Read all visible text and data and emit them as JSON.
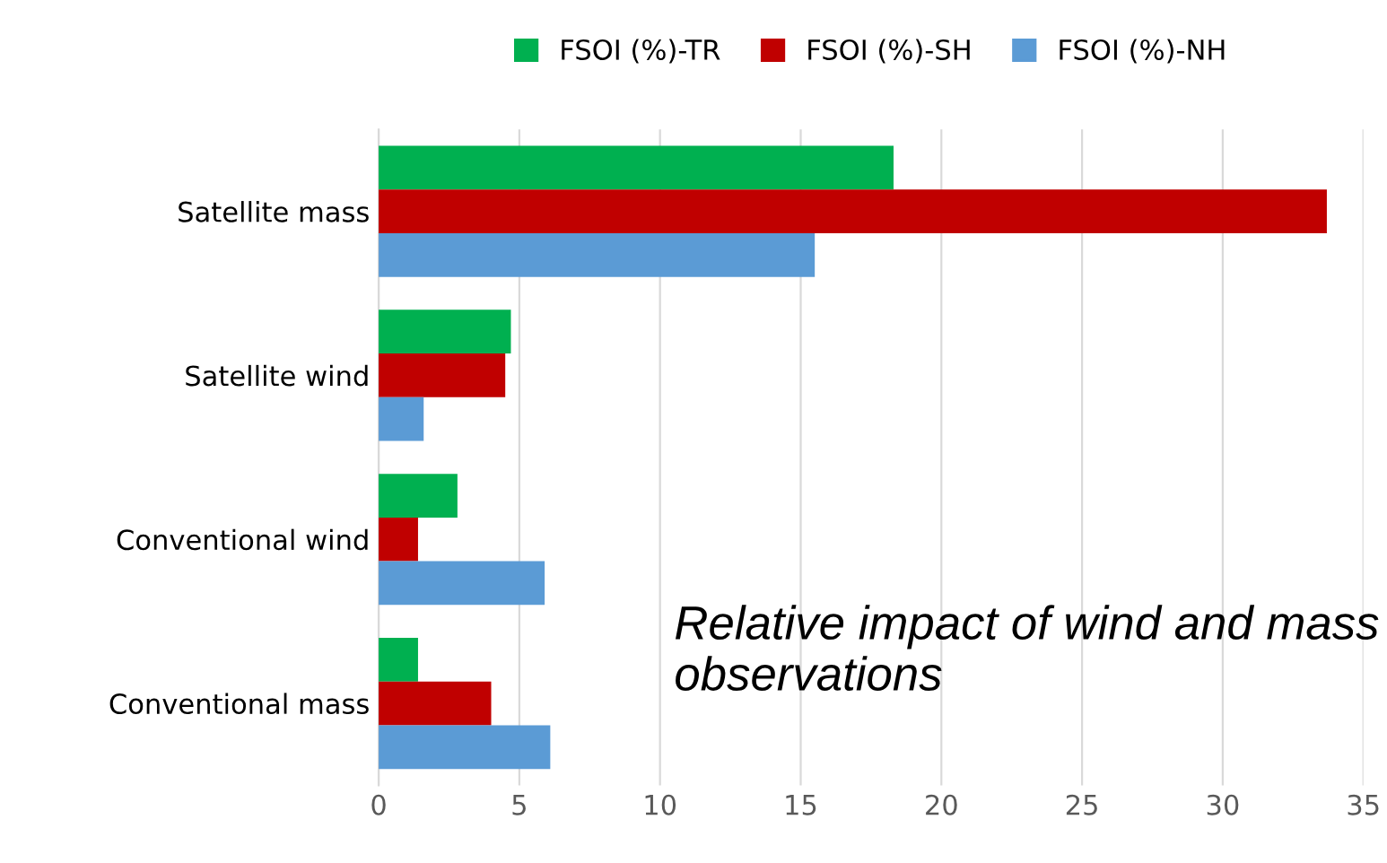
{
  "chart_data": {
    "type": "bar",
    "orientation": "horizontal",
    "categories": [
      "Satellite mass",
      "Satellite wind",
      "Conventional wind",
      "Conventional mass"
    ],
    "series": [
      {
        "name": "FSOI (%)-TR",
        "color": "#00b050",
        "values": [
          18.3,
          4.7,
          2.8,
          1.4
        ]
      },
      {
        "name": "FSOI (%)-SH",
        "color": "#c00000",
        "values": [
          33.7,
          4.5,
          1.4,
          4.0
        ]
      },
      {
        "name": "FSOI (%)-NH",
        "color": "#5b9bd5",
        "values": [
          15.5,
          1.6,
          5.9,
          6.1
        ]
      }
    ],
    "xlim": [
      0,
      35
    ],
    "xticks": [
      0,
      5,
      10,
      15,
      20,
      25,
      30,
      35
    ],
    "grid": "x",
    "legend": "top",
    "annotations": [
      "Relative impact of wind and mass observations"
    ]
  }
}
